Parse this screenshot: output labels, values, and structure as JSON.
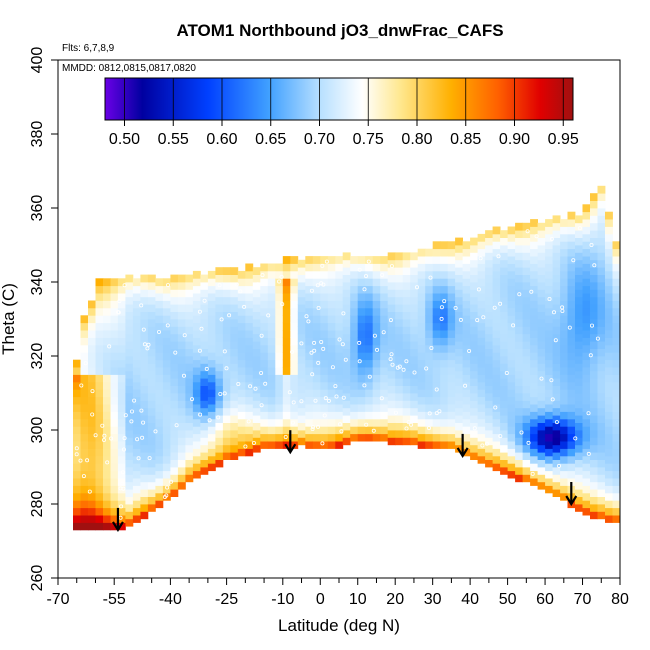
{
  "chart_data": {
    "type": "heatmap",
    "title": "ATOM1 Northbound jO3_dnwFrac_CAFS",
    "subtitle": "Flts: 6,7,8,9",
    "annotation": "MMDD: 0812,0815,0817,0820",
    "xlabel": "Latitude (deg N)",
    "ylabel": "Theta (C)",
    "xlim": [
      -70,
      80
    ],
    "ylim": [
      260,
      400
    ],
    "xticks": [
      -70,
      -55,
      -40,
      -25,
      -10,
      0,
      10,
      20,
      30,
      40,
      50,
      60,
      70,
      80
    ],
    "xtick_labels": [
      "-70",
      "-55",
      "-40",
      "-25",
      "-10",
      "0",
      "10",
      "20",
      "30",
      "40",
      "50",
      "60",
      "70",
      "80"
    ],
    "yticks": [
      260,
      280,
      300,
      320,
      340,
      360,
      380,
      400
    ],
    "ytick_labels": [
      "260",
      "280",
      "300",
      "320",
      "340",
      "360",
      "380",
      "400"
    ],
    "colorbar": {
      "min": 0.48,
      "max": 0.96,
      "ticks": [
        0.5,
        0.55,
        0.6,
        0.65,
        0.7,
        0.75,
        0.8,
        0.85,
        0.9,
        0.95
      ],
      "tick_labels": [
        "0.50",
        "0.55",
        "0.60",
        "0.65",
        "0.70",
        "0.75",
        "0.80",
        "0.85",
        "0.90",
        "0.95"
      ],
      "colors": [
        "#6a00e6",
        "#0000a0",
        "#0040ff",
        "#40a0ff",
        "#b8e0ff",
        "#ffffff",
        "#ffe890",
        "#ffb000",
        "#ff6000",
        "#e00000",
        "#a01010"
      ]
    },
    "arrows": [
      {
        "lat": -54,
        "theta": 273
      },
      {
        "lat": -8,
        "theta": 294
      },
      {
        "lat": 38,
        "theta": 293
      },
      {
        "lat": 67,
        "theta": 280
      }
    ],
    "grid": false,
    "legend": "colorbar top"
  }
}
